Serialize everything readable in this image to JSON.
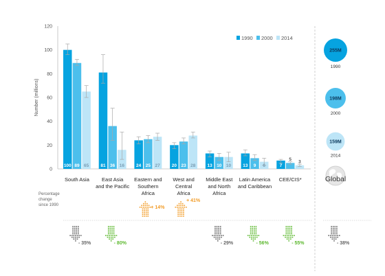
{
  "chart_data": {
    "type": "bar",
    "ylabel": "Number (millions)",
    "ylim": [
      0,
      120
    ],
    "yticks": [
      0,
      20,
      40,
      60,
      80,
      100,
      120
    ],
    "legend_position": "top-right",
    "series": [
      {
        "name": "1990",
        "color": "#06a3e0"
      },
      {
        "name": "2000",
        "color": "#4cbfec"
      },
      {
        "name": "2014",
        "color": "#bde5f7"
      }
    ],
    "regions": [
      {
        "label": [
          "South Asia"
        ],
        "values": [
          100,
          89,
          65
        ],
        "errors": [
          [
            96,
            105
          ],
          [
            87,
            92
          ],
          [
            60,
            70
          ]
        ],
        "value_labels": [
          "100",
          "89",
          "65"
        ],
        "change": "- 35%",
        "direction": "down",
        "arrow_color": "#666666"
      },
      {
        "label": [
          "East Asia",
          "and the Pacific"
        ],
        "values": [
          81,
          36,
          16
        ],
        "errors": [
          [
            72,
            96
          ],
          [
            24,
            51
          ],
          [
            8,
            31
          ]
        ],
        "value_labels": [
          "81",
          "36",
          "16"
        ],
        "change": "- 80%",
        "direction": "down",
        "arrow_color": "#5cb82e"
      },
      {
        "label": [
          "Eastern and",
          "Southern",
          "Africa"
        ],
        "values": [
          24,
          25,
          27
        ],
        "errors": [
          [
            21,
            27
          ],
          [
            22,
            28
          ],
          [
            24,
            30
          ]
        ],
        "value_labels": [
          "24",
          "25",
          "27"
        ],
        "change": "+ 14%",
        "direction": "up",
        "arrow_color": "#f29c27"
      },
      {
        "label": [
          "West and",
          "Central",
          "Africa"
        ],
        "values": [
          20,
          23,
          28
        ],
        "errors": [
          [
            17,
            22
          ],
          [
            21,
            26
          ],
          [
            26,
            31
          ]
        ],
        "value_labels": [
          "20",
          "23",
          "28"
        ],
        "change": "+ 41%",
        "direction": "up",
        "arrow_color": "#f29c27"
      },
      {
        "label": [
          "Middle East",
          "and North",
          "Africa"
        ],
        "values": [
          13,
          10,
          10
        ],
        "errors": [
          [
            10,
            15
          ],
          [
            7,
            13
          ],
          [
            6,
            14
          ]
        ],
        "value_labels": [
          "13",
          "10",
          "10"
        ],
        "change": "- 29%",
        "direction": "down",
        "arrow_color": "#666666"
      },
      {
        "label": [
          "Latin America",
          "and Caribbean"
        ],
        "values": [
          13,
          9,
          6
        ],
        "errors": [
          [
            11,
            16
          ],
          [
            7,
            12
          ],
          [
            3,
            9
          ]
        ],
        "value_labels": [
          "13",
          "9",
          "6"
        ],
        "change": "- 56%",
        "direction": "down",
        "arrow_color": "#5cb82e"
      },
      {
        "label": [
          "CEE/CIS*"
        ],
        "values": [
          7,
          5,
          3
        ],
        "errors": [
          [
            5,
            8
          ],
          [
            4,
            6
          ],
          [
            2,
            4
          ]
        ],
        "value_labels": [
          "7",
          "5",
          "3"
        ],
        "change": "- 55%",
        "direction": "down",
        "arrow_color": "#5cb82e"
      }
    ],
    "global": {
      "label": "Global",
      "bubbles": [
        {
          "year": "1990",
          "value_label": "255M",
          "value": 255,
          "color": "#06a3e0"
        },
        {
          "year": "2000",
          "value_label": "198M",
          "value": 198,
          "color": "#4cbfec"
        },
        {
          "year": "2014",
          "value_label": "159M",
          "value": 159,
          "color": "#bde5f7"
        }
      ],
      "change": "- 38%",
      "arrow_color": "#666666"
    },
    "change_note": [
      "Percentage",
      "change",
      "since 1990"
    ]
  }
}
